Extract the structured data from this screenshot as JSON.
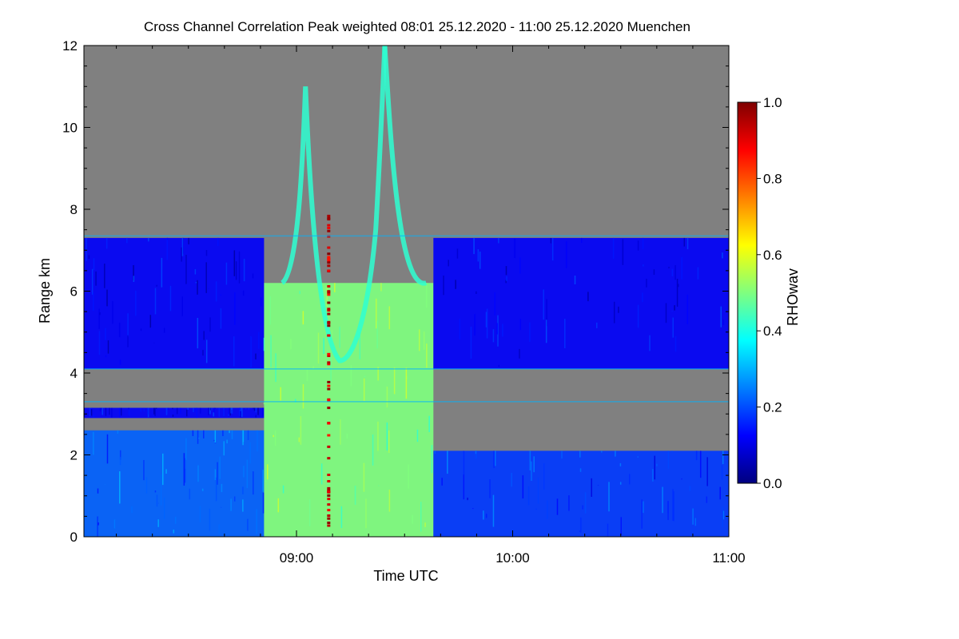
{
  "chart_data": {
    "type": "heatmap",
    "title": "Cross Channel Correlation Peak weighted   08:01 25.12.2020 - 11:00 25.12.2020 Muenchen",
    "xlabel": "Time UTC",
    "ylabel": "Range km",
    "x_range_min": [
      481,
      660
    ],
    "xlim_minutes": [
      481,
      660
    ],
    "x_ticks": [
      {
        "minute": 540,
        "label": "09:00"
      },
      {
        "minute": 600,
        "label": "10:00"
      },
      {
        "minute": 660,
        "label": "11:00"
      }
    ],
    "ylim": [
      0,
      12
    ],
    "y_ticks": [
      {
        "value": 0,
        "label": "0"
      },
      {
        "value": 2,
        "label": "2"
      },
      {
        "value": 4,
        "label": "4"
      },
      {
        "value": 6,
        "label": "6"
      },
      {
        "value": 8,
        "label": "8"
      },
      {
        "value": 10,
        "label": "10"
      },
      {
        "value": 12,
        "label": "12"
      }
    ],
    "colorbar": {
      "label": "RHOwav",
      "range": [
        0,
        1
      ],
      "ticks": [
        {
          "value": 0.0,
          "label": "0.0"
        },
        {
          "value": 0.2,
          "label": "0.2"
        },
        {
          "value": 0.4,
          "label": "0.4"
        },
        {
          "value": 0.6,
          "label": "0.6"
        },
        {
          "value": 0.8,
          "label": "0.8"
        },
        {
          "value": 1.0,
          "label": "1.0"
        }
      ],
      "colors": [
        "#00007f",
        "#0000ff",
        "#007fff",
        "#00ffff",
        "#7fff7f",
        "#ffff00",
        "#ff7f00",
        "#ff0000",
        "#7f0000"
      ]
    },
    "no_data_color": "#808080",
    "regions": [
      {
        "x": [
          481,
          531
        ],
        "y": [
          0,
          2.6
        ],
        "value": 0.22
      },
      {
        "x": [
          481,
          531
        ],
        "y": [
          2.9,
          3.15
        ],
        "value": 0.12
      },
      {
        "x": [
          481,
          531
        ],
        "y": [
          4.1,
          7.3
        ],
        "value": 0.12
      },
      {
        "x": [
          531,
          578
        ],
        "y": [
          0,
          6.2
        ],
        "value": 0.5
      },
      {
        "x": [
          578,
          660
        ],
        "y": [
          0,
          2.1
        ],
        "value": 0.18
      },
      {
        "x": [
          578,
          660
        ],
        "y": [
          4.1,
          7.3
        ],
        "value": 0.12
      }
    ],
    "grid": false,
    "legend": "colorbar-right"
  }
}
